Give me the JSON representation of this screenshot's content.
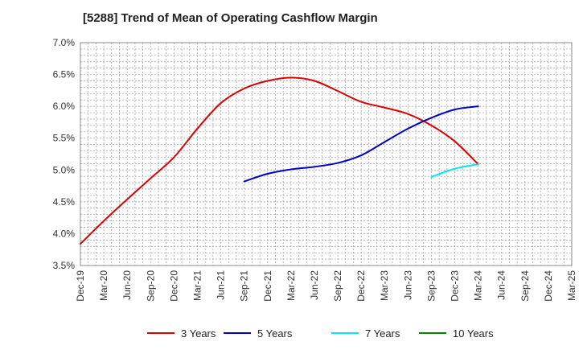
{
  "chart_data": {
    "type": "line",
    "title": "[5288]  Trend of Mean of Operating Cashflow Margin",
    "xlabel": "",
    "ylabel": "",
    "x_ticks": [
      "Dec-19",
      "Mar-20",
      "Jun-20",
      "Sep-20",
      "Dec-20",
      "Mar-21",
      "Jun-21",
      "Sep-21",
      "Dec-21",
      "Mar-22",
      "Jun-22",
      "Sep-22",
      "Dec-22",
      "Mar-23",
      "Jun-23",
      "Sep-23",
      "Dec-23",
      "Mar-24",
      "Jun-24",
      "Sep-24",
      "Dec-24",
      "Mar-25"
    ],
    "ylim": [
      3.5,
      7.0
    ],
    "y_ticks": [
      "3.5%",
      "4.0%",
      "4.5%",
      "5.0%",
      "5.5%",
      "6.0%",
      "6.5%",
      "7.0%"
    ],
    "grid": true,
    "legend_position": "bottom",
    "series": [
      {
        "name": "3 Years",
        "color": "#dd0000",
        "points": [
          [
            "Dec-19",
            3.84
          ],
          [
            "Mar-20",
            4.2
          ],
          [
            "Jun-20",
            4.54
          ],
          [
            "Sep-20",
            4.87
          ],
          [
            "Dec-20",
            5.2
          ],
          [
            "Mar-21",
            5.65
          ],
          [
            "Jun-21",
            6.05
          ],
          [
            "Sep-21",
            6.28
          ],
          [
            "Dec-21",
            6.4
          ],
          [
            "Mar-22",
            6.45
          ],
          [
            "Jun-22",
            6.4
          ],
          [
            "Sep-22",
            6.24
          ],
          [
            "Dec-22",
            6.07
          ],
          [
            "Mar-23",
            5.98
          ],
          [
            "Jun-23",
            5.88
          ],
          [
            "Sep-23",
            5.7
          ],
          [
            "Dec-23",
            5.45
          ],
          [
            "Mar-24",
            5.09
          ]
        ]
      },
      {
        "name": "5 Years",
        "color": "#0000cc",
        "points": [
          [
            "Sep-21",
            4.82
          ],
          [
            "Dec-21",
            4.94
          ],
          [
            "Mar-22",
            5.01
          ],
          [
            "Jun-22",
            5.05
          ],
          [
            "Sep-22",
            5.11
          ],
          [
            "Dec-22",
            5.23
          ],
          [
            "Mar-23",
            5.44
          ],
          [
            "Jun-23",
            5.65
          ],
          [
            "Sep-23",
            5.82
          ],
          [
            "Dec-23",
            5.95
          ],
          [
            "Mar-24",
            6.0
          ]
        ]
      },
      {
        "name": "7 Years",
        "color": "#00e5ee",
        "points": [
          [
            "Sep-23",
            4.89
          ],
          [
            "Dec-23",
            5.02
          ],
          [
            "Mar-24",
            5.09
          ]
        ]
      },
      {
        "name": "10 Years",
        "color": "#008800",
        "points": []
      }
    ]
  }
}
